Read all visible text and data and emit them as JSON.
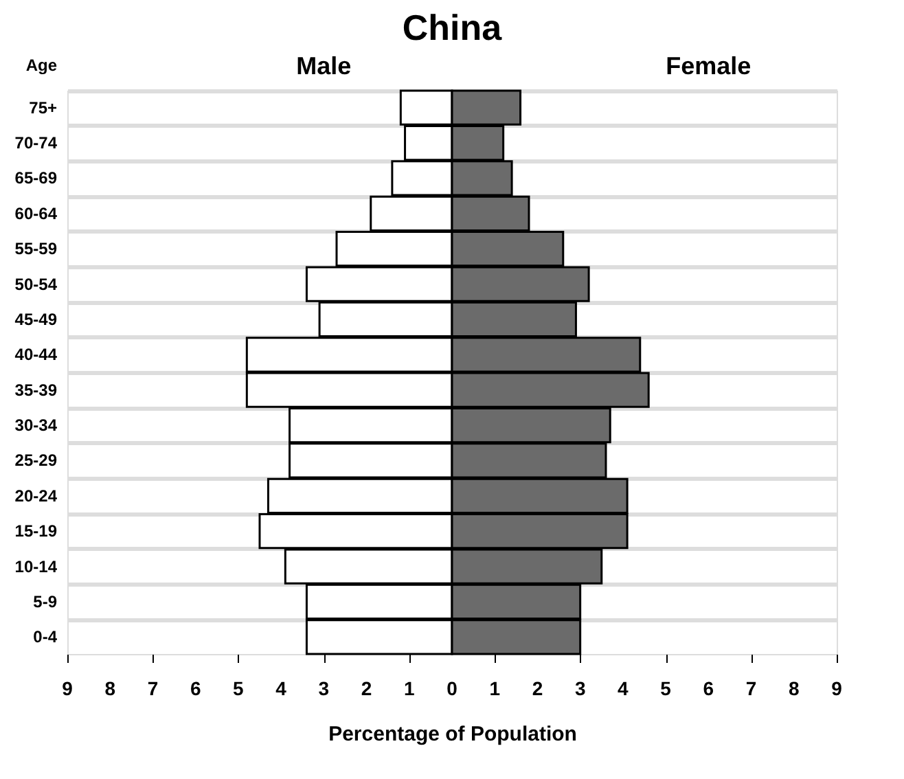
{
  "chart_data": {
    "type": "bar",
    "orientation": "horizontal",
    "title": "China",
    "xlabel": "Percentage of Population",
    "ylabel": "Age",
    "categories": [
      "75+",
      "70-74",
      "65-69",
      "60-64",
      "55-59",
      "50-54",
      "45-49",
      "40-44",
      "35-39",
      "30-34",
      "25-29",
      "20-24",
      "15-19",
      "10-14",
      "5-9",
      "0-4"
    ],
    "series": [
      {
        "name": "Male",
        "color": "#ffffff",
        "values": [
          -1.2,
          -1.1,
          -1.4,
          -1.9,
          -2.7,
          -3.4,
          -3.1,
          -4.8,
          -4.8,
          -3.8,
          -3.8,
          -4.3,
          -4.5,
          -3.9,
          -3.4,
          -3.4
        ]
      },
      {
        "name": "Female",
        "color": "#6b6b6b",
        "values": [
          1.6,
          1.2,
          1.4,
          1.8,
          2.6,
          3.2,
          2.9,
          4.4,
          4.6,
          3.7,
          3.6,
          4.1,
          4.1,
          3.5,
          3.0,
          3.0
        ]
      }
    ],
    "xlim": [
      -9,
      9
    ],
    "xticks": [
      {
        "value": -9,
        "label": "9"
      },
      {
        "value": -8,
        "label": "8"
      },
      {
        "value": -7,
        "label": "7"
      },
      {
        "value": -6,
        "label": "6"
      },
      {
        "value": -5,
        "label": "5"
      },
      {
        "value": -4,
        "label": "4"
      },
      {
        "value": -3,
        "label": "3"
      },
      {
        "value": -2,
        "label": "2"
      },
      {
        "value": -1,
        "label": "1"
      },
      0,
      1,
      2,
      3,
      4,
      5,
      6,
      7,
      8,
      9
    ],
    "stacked": true,
    "grid": "y",
    "legend": false
  }
}
